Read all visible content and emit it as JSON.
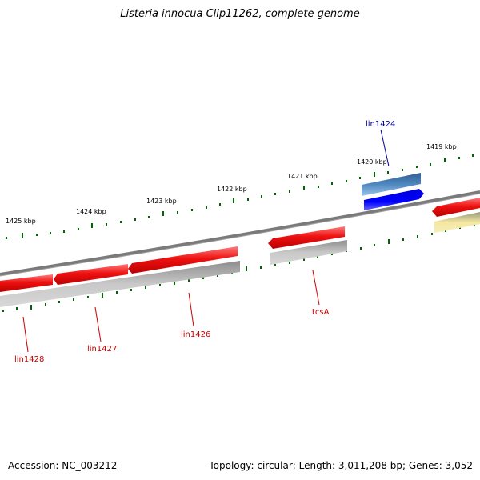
{
  "title": "Listeria innocua Clip11262, complete genome",
  "footer": {
    "accession_label": "Accession:",
    "accession": "NC_003212",
    "stats": "Topology: circular; Length: 3,011,208 bp; Genes: 3,052"
  },
  "colors": {
    "backbone": "#808080",
    "cds_forward": "#ee1111",
    "cds_reverse_grey": "#a8a8a8",
    "cds_blue_dark": "#3b73a8",
    "cds_blue": "#0000ee",
    "cds_yellow": "#f0e39a",
    "ticks": "#006600",
    "label_red": "#cc0000",
    "label_blue": "#000099"
  },
  "tick_labels": [
    "1419 kbp",
    "1420 kbp",
    "1421 kbp",
    "1422 kbp",
    "1423 kbp",
    "1424 kbp",
    "1425 kbp"
  ],
  "gene_labels": [
    "lin1424",
    "tcsA",
    "lin1426",
    "lin1427",
    "lin1428"
  ]
}
